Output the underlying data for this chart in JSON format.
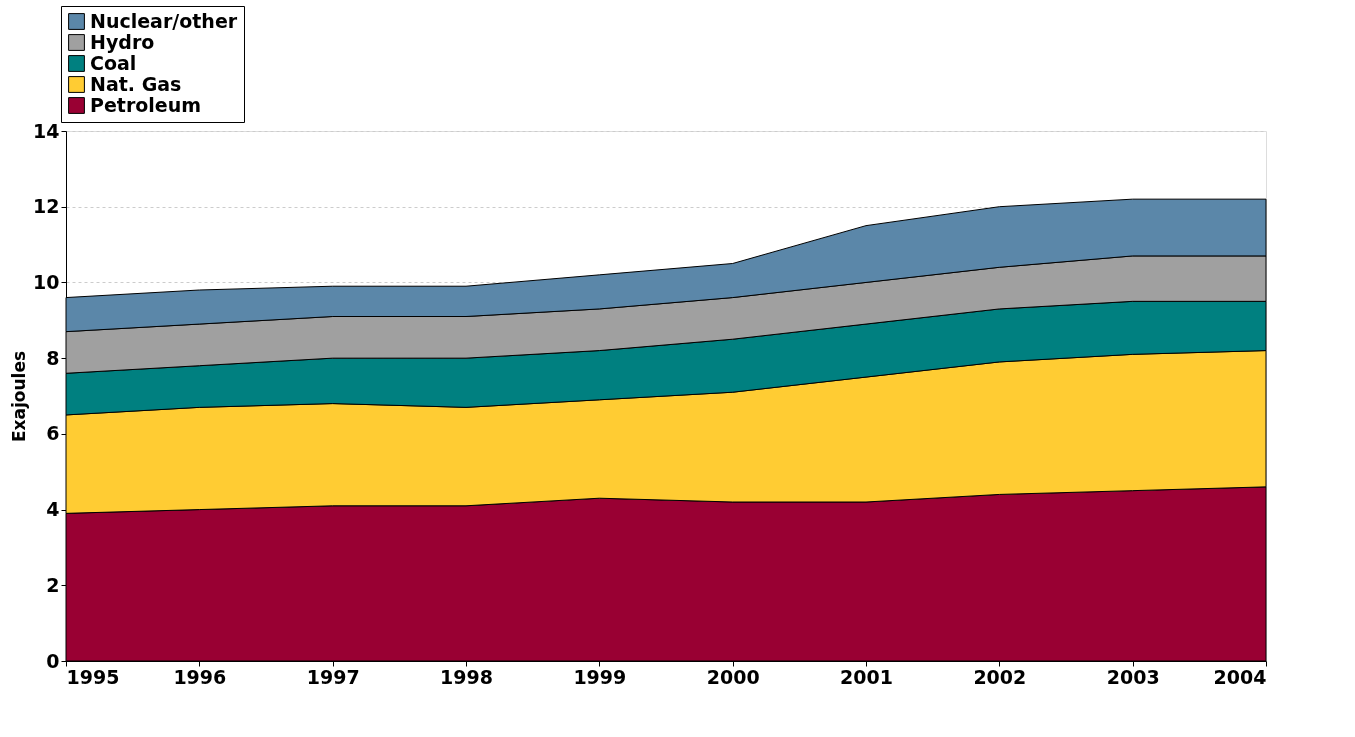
{
  "chart_data": {
    "type": "area",
    "stacked": true,
    "ylabel": "Exajoules",
    "x": [
      1995,
      1996,
      1997,
      1998,
      1999,
      2000,
      2001,
      2002,
      2003,
      2004
    ],
    "series": [
      {
        "name": "Petroleum",
        "color": "#990033",
        "values": [
          3.9,
          4.0,
          4.1,
          4.1,
          4.3,
          4.2,
          4.2,
          4.4,
          4.5,
          4.6
        ]
      },
      {
        "name": "Nat. Gas",
        "color": "#ffcc33",
        "values": [
          2.6,
          2.7,
          2.7,
          2.6,
          2.6,
          2.9,
          3.3,
          3.5,
          3.6,
          3.6
        ]
      },
      {
        "name": "Coal",
        "color": "#008080",
        "values": [
          1.1,
          1.1,
          1.2,
          1.3,
          1.3,
          1.4,
          1.4,
          1.4,
          1.4,
          1.3
        ]
      },
      {
        "name": "Hydro",
        "color": "#a0a0a0",
        "values": [
          1.1,
          1.1,
          1.1,
          1.1,
          1.1,
          1.1,
          1.1,
          1.1,
          1.2,
          1.2
        ]
      },
      {
        "name": "Nuclear/other",
        "color": "#5b87a9",
        "values": [
          0.9,
          0.9,
          0.8,
          0.8,
          0.9,
          0.9,
          1.5,
          1.6,
          1.5,
          1.5
        ]
      }
    ],
    "xlim": [
      1995,
      2004
    ],
    "xticks": [
      1995,
      1996,
      1997,
      1998,
      1999,
      2000,
      2001,
      2002,
      2003,
      2004
    ],
    "ylim": [
      0,
      14
    ],
    "yticks": [
      0,
      2,
      4,
      6,
      8,
      10,
      12,
      14
    ],
    "grid": "y",
    "legend": "top left"
  }
}
